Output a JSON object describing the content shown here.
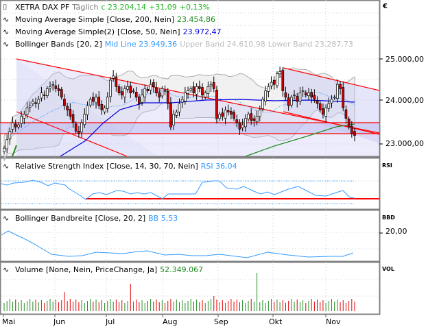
{
  "header": {
    "instrument": "XETRA DAX PF",
    "interval": "Täglich",
    "close_label": "c 23.204,14",
    "change": "+31,09",
    "change_pct": "+0,13%"
  },
  "indicators": {
    "ma200": {
      "label": "Moving Average Simple",
      "params": "[Close, 200, Nein]",
      "value": "23.454,86"
    },
    "ma50": {
      "label": "Moving Average Simple(2)",
      "params": "[Close, 50, Nein]",
      "value": "23.972,47"
    },
    "bollinger": {
      "label": "Bollinger Bands",
      "params": "[20, 2]",
      "mid": "Mid Line 23.949,36",
      "upper": "Upper Band 24.610,98",
      "lower": "Lower Band 23.287,73"
    },
    "rsi": {
      "label": "Relative Strength Index",
      "params": "[Close, 14, 30, 70, Nein]",
      "value": "RSI 36,04",
      "axis": "RSI"
    },
    "bbw": {
      "label": "Bollinger Bandbreite",
      "params": "[Close, 20, 2]",
      "value": "BB 5,53",
      "axis": "BBD",
      "tick": "20,00"
    },
    "volume": {
      "label": "Volume",
      "params": "[None, Nein, PriceChange, Ja]",
      "value": "52.349.067",
      "axis": "VOL"
    }
  },
  "axis": {
    "currency": "€",
    "price_ticks": [
      "25.000,00",
      "24.000,00",
      "23.000,00"
    ],
    "months": [
      "Mai",
      "Jun",
      "Jul",
      "Aug",
      "Sep",
      "Okt",
      "Nov"
    ]
  },
  "colors": {
    "up": "#228b22",
    "down": "#e00000",
    "ma200": "#228b22",
    "ma50": "#0000e0",
    "bb_mid": "#3399ff",
    "trendline": "#ff0000",
    "rsi": "#3399ff"
  },
  "chart_data": {
    "type": "candlestick",
    "title": "XETRA DAX PF Täglich",
    "xlabel": "",
    "ylabel": "€",
    "ylim": [
      22650,
      25250
    ],
    "x_ticks": [
      "Mai",
      "Jun",
      "Jul",
      "Aug",
      "Sep",
      "Okt",
      "Nov"
    ],
    "last_close": 23204.14,
    "horizontal_lines": [
      23470,
      23230
    ],
    "approx_closes": [
      22900,
      23100,
      23300,
      23500,
      23400,
      23450,
      23650,
      23700,
      23850,
      23900,
      24000,
      23950,
      24050,
      24200,
      24150,
      24300,
      24350,
      24400,
      24300,
      24250,
      24100,
      23900,
      23800,
      23650,
      23500,
      23300,
      23250,
      23500,
      23700,
      23900,
      24050,
      24000,
      24100,
      23900,
      23800,
      23850,
      24100,
      24500,
      24600,
      24350,
      24200,
      24150,
      24300,
      24350,
      24200,
      24250,
      24100,
      23950,
      24150,
      24300,
      24250,
      24400,
      24350,
      24200,
      24100,
      24300,
      24250,
      23950,
      23400,
      23700,
      23750,
      23950,
      24050,
      24200,
      24250,
      24300,
      24200,
      24350,
      24300,
      24150,
      24200,
      24350,
      24400,
      24300,
      23600,
      23700,
      23650,
      23800,
      23750,
      23700,
      23600,
      23500,
      23350,
      23450,
      23600,
      23700,
      23550,
      23550,
      23650,
      23800,
      24050,
      24250,
      24350,
      24450,
      24400,
      24650,
      24700,
      24250,
      24100,
      23900,
      24100,
      24150,
      24000,
      24200,
      24250,
      24150,
      24200,
      24100,
      24050,
      23950,
      23800,
      23700,
      23850,
      23950,
      24050,
      24100,
      24400,
      24300,
      23850,
      23600,
      23400,
      23250,
      23200
    ],
    "indicator_values": {
      "ma200": 23454.86,
      "ma50": 23972.47,
      "bb_mid": 23949.36,
      "bb_upper": 24610.98,
      "bb_lower": 23287.73,
      "rsi": 36.04,
      "rsi_levels": [
        30,
        70
      ],
      "bb_width": 5.53,
      "volume": 52349067
    }
  }
}
